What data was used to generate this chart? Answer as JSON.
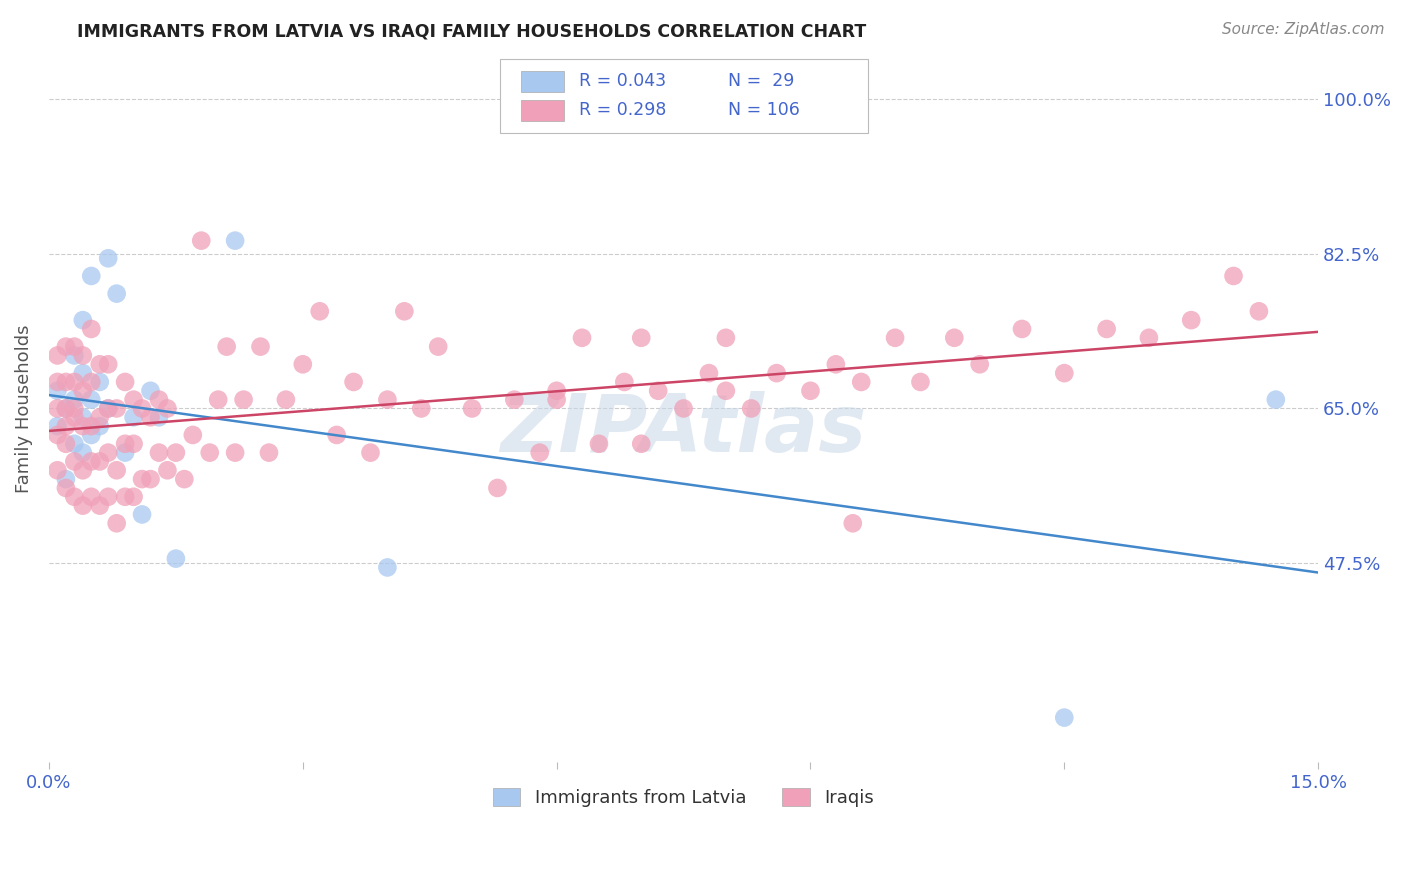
{
  "title": "IMMIGRANTS FROM LATVIA VS IRAQI FAMILY HOUSEHOLDS CORRELATION CHART",
  "source": "Source: ZipAtlas.com",
  "ylabel": "Family Households",
  "xlim": [
    0.0,
    0.15
  ],
  "ylim": [
    0.25,
    1.05
  ],
  "yticks": [
    0.475,
    0.65,
    0.825,
    1.0
  ],
  "ytick_labels": [
    "47.5%",
    "65.0%",
    "82.5%",
    "100.0%"
  ],
  "xticks": [
    0.0,
    0.03,
    0.06,
    0.09,
    0.12,
    0.15
  ],
  "xtick_labels": [
    "0.0%",
    "",
    "",
    "",
    "",
    "15.0%"
  ],
  "color_latvia": "#a8c8f0",
  "color_iraq": "#f0a0b8",
  "color_line_latvia": "#4488cc",
  "color_line_iraq": "#cc4466",
  "title_color": "#222222",
  "source_color": "#888888",
  "axis_label_color": "#555555",
  "tick_color_blue": "#4466cc",
  "grid_color": "#cccccc",
  "background_color": "#ffffff",
  "latvia_x": [
    0.001,
    0.001,
    0.002,
    0.002,
    0.003,
    0.003,
    0.003,
    0.004,
    0.004,
    0.004,
    0.004,
    0.005,
    0.005,
    0.005,
    0.006,
    0.006,
    0.007,
    0.007,
    0.008,
    0.009,
    0.01,
    0.011,
    0.012,
    0.013,
    0.015,
    0.022,
    0.04,
    0.12,
    0.145
  ],
  "latvia_y": [
    0.63,
    0.67,
    0.57,
    0.65,
    0.61,
    0.66,
    0.71,
    0.6,
    0.64,
    0.69,
    0.75,
    0.62,
    0.66,
    0.8,
    0.63,
    0.68,
    0.65,
    0.82,
    0.78,
    0.6,
    0.64,
    0.53,
    0.67,
    0.64,
    0.48,
    0.84,
    0.47,
    0.3,
    0.66
  ],
  "iraq_x": [
    0.001,
    0.001,
    0.001,
    0.001,
    0.001,
    0.002,
    0.002,
    0.002,
    0.002,
    0.002,
    0.002,
    0.003,
    0.003,
    0.003,
    0.003,
    0.003,
    0.003,
    0.004,
    0.004,
    0.004,
    0.004,
    0.004,
    0.005,
    0.005,
    0.005,
    0.005,
    0.005,
    0.006,
    0.006,
    0.006,
    0.006,
    0.007,
    0.007,
    0.007,
    0.007,
    0.008,
    0.008,
    0.008,
    0.009,
    0.009,
    0.009,
    0.01,
    0.01,
    0.01,
    0.011,
    0.011,
    0.012,
    0.012,
    0.013,
    0.013,
    0.014,
    0.014,
    0.015,
    0.016,
    0.017,
    0.018,
    0.019,
    0.02,
    0.021,
    0.022,
    0.023,
    0.025,
    0.026,
    0.028,
    0.03,
    0.032,
    0.034,
    0.036,
    0.038,
    0.04,
    0.042,
    0.044,
    0.046,
    0.05,
    0.053,
    0.055,
    0.058,
    0.06,
    0.063,
    0.065,
    0.068,
    0.07,
    0.072,
    0.075,
    0.078,
    0.08,
    0.083,
    0.086,
    0.09,
    0.093,
    0.096,
    0.1,
    0.103,
    0.107,
    0.11,
    0.115,
    0.12,
    0.125,
    0.13,
    0.135,
    0.14,
    0.143,
    0.06,
    0.07,
    0.08,
    0.095
  ],
  "iraq_y": [
    0.62,
    0.65,
    0.68,
    0.71,
    0.58,
    0.56,
    0.61,
    0.65,
    0.68,
    0.72,
    0.63,
    0.55,
    0.59,
    0.64,
    0.68,
    0.72,
    0.65,
    0.54,
    0.58,
    0.63,
    0.67,
    0.71,
    0.55,
    0.59,
    0.63,
    0.68,
    0.74,
    0.54,
    0.59,
    0.64,
    0.7,
    0.55,
    0.6,
    0.65,
    0.7,
    0.52,
    0.58,
    0.65,
    0.55,
    0.61,
    0.68,
    0.55,
    0.61,
    0.66,
    0.57,
    0.65,
    0.57,
    0.64,
    0.6,
    0.66,
    0.58,
    0.65,
    0.6,
    0.57,
    0.62,
    0.84,
    0.6,
    0.66,
    0.72,
    0.6,
    0.66,
    0.72,
    0.6,
    0.66,
    0.7,
    0.76,
    0.62,
    0.68,
    0.6,
    0.66,
    0.76,
    0.65,
    0.72,
    0.65,
    0.56,
    0.66,
    0.6,
    0.66,
    0.73,
    0.61,
    0.68,
    0.61,
    0.67,
    0.65,
    0.69,
    0.73,
    0.65,
    0.69,
    0.67,
    0.7,
    0.68,
    0.73,
    0.68,
    0.73,
    0.7,
    0.74,
    0.69,
    0.74,
    0.73,
    0.75,
    0.8,
    0.76,
    0.67,
    0.73,
    0.67,
    0.52
  ]
}
